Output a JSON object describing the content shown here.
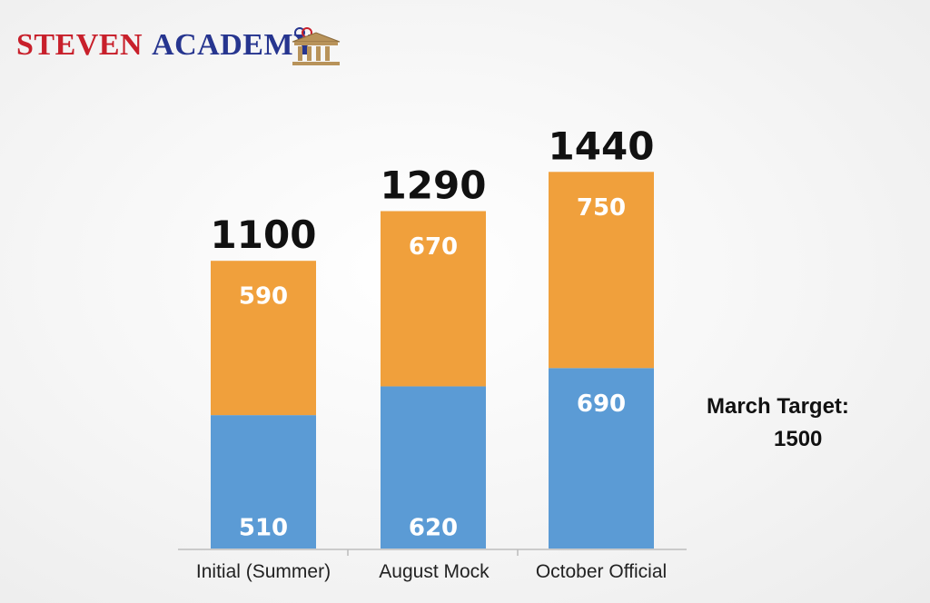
{
  "brand": {
    "logo_text_part1": "Steven",
    "logo_text_part2": "Academy",
    "colors": {
      "red": "#c8202b",
      "blue": "#26358f",
      "gold": "#b8935a"
    },
    "icon": "building-columns-icon"
  },
  "annotation": {
    "label": "March Target:",
    "value": "1500"
  },
  "chart_data": {
    "type": "bar",
    "stacked": true,
    "categories": [
      "Initial (Summer)",
      "August Mock",
      "October Official"
    ],
    "series": [
      {
        "color": "#5b9bd5",
        "values": [
          510,
          620,
          690
        ]
      },
      {
        "color": "#f0a03c",
        "values": [
          590,
          670,
          750
        ]
      }
    ],
    "totals": [
      1100,
      1290,
      1440
    ],
    "title": "",
    "xlabel": "",
    "ylabel": "",
    "ylim": [
      0,
      1600
    ],
    "grid": false,
    "legend": "none"
  }
}
